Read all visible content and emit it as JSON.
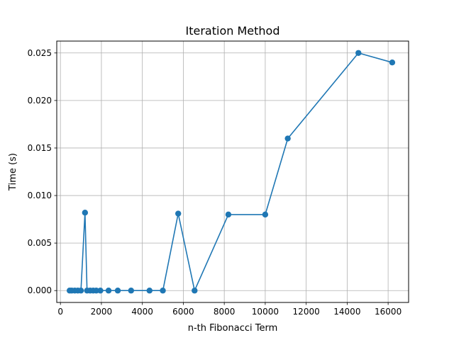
{
  "chart_data": {
    "type": "line",
    "title": "Iteration Method",
    "xlabel": "n-th Fibonacci Term",
    "ylabel": "Time (s)",
    "xlim": [
      -180,
      17000
    ],
    "ylim": [
      -0.00125,
      0.02625
    ],
    "xticks": [
      0,
      2000,
      4000,
      6000,
      8000,
      10000,
      12000,
      14000,
      16000
    ],
    "xtick_labels": [
      "0",
      "2000",
      "4000",
      "6000",
      "8000",
      "10000",
      "12000",
      "14000",
      "16000"
    ],
    "yticks": [
      0.0,
      0.005,
      0.01,
      0.015,
      0.02,
      0.025
    ],
    "ytick_labels": [
      "0.000",
      "0.005",
      "0.010",
      "0.015",
      "0.020",
      "0.025"
    ],
    "grid": true,
    "legend": null,
    "series": [
      {
        "color": "#1f77b4",
        "marker": "circle",
        "x": [
          450,
          550,
          700,
          850,
          1000,
          1200,
          1300,
          1450,
          1600,
          1750,
          1950,
          2350,
          2800,
          3450,
          4350,
          5000,
          5750,
          6550,
          8200,
          10000,
          11100,
          14550,
          16200
        ],
        "y": [
          0.0,
          0.0,
          0.0,
          0.0,
          0.0,
          0.0082,
          0.0,
          0.0,
          0.0,
          0.0,
          0.0,
          0.0,
          0.0,
          0.0,
          0.0,
          0.0,
          0.0081,
          0.0,
          0.008,
          0.008,
          0.016,
          0.025,
          0.024
        ]
      }
    ]
  }
}
